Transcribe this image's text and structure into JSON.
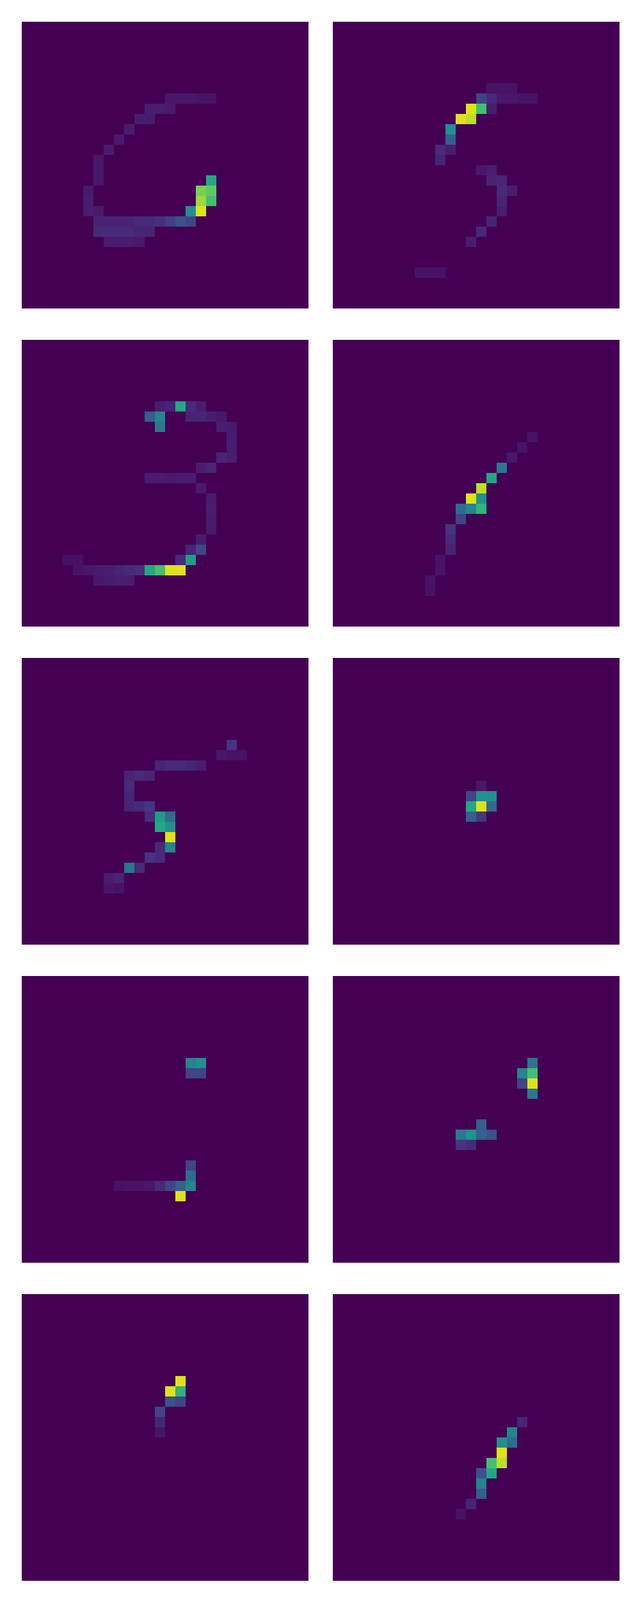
{
  "chart_data": {
    "type": "heatmap",
    "tick_labels": false,
    "color": "viridis",
    "color_range": [
      0,
      1
    ],
    "grid_size": 28,
    "background": 0,
    "panels": [
      {
        "cells": [
          [
            15,
            18,
            0.6
          ],
          [
            16,
            17,
            0.8
          ],
          [
            16,
            18,
            0.75
          ],
          [
            17,
            17,
            0.85
          ],
          [
            17,
            18,
            0.7
          ],
          [
            18,
            16,
            0.5
          ],
          [
            18,
            17,
            0.95
          ],
          [
            19,
            15,
            0.25
          ],
          [
            19,
            16,
            0.2
          ],
          [
            7,
            14,
            0.06
          ],
          [
            7,
            15,
            0.06
          ],
          [
            7,
            16,
            0.06
          ],
          [
            7,
            17,
            0.05
          ],
          [
            7,
            18,
            0.05
          ],
          [
            8,
            12,
            0.08
          ],
          [
            8,
            13,
            0.08
          ],
          [
            8,
            14,
            0.07
          ],
          [
            9,
            11,
            0.08
          ],
          [
            9,
            12,
            0.07
          ],
          [
            10,
            10,
            0.08
          ],
          [
            11,
            9,
            0.07
          ],
          [
            12,
            8,
            0.07
          ],
          [
            13,
            7,
            0.06
          ],
          [
            14,
            7,
            0.06
          ],
          [
            15,
            7,
            0.06
          ],
          [
            16,
            6,
            0.07
          ],
          [
            17,
            6,
            0.08
          ],
          [
            18,
            6,
            0.08
          ],
          [
            18,
            7,
            0.07
          ],
          [
            19,
            7,
            0.1
          ],
          [
            19,
            8,
            0.1
          ],
          [
            19,
            9,
            0.1
          ],
          [
            19,
            10,
            0.1
          ],
          [
            19,
            11,
            0.12
          ],
          [
            19,
            12,
            0.12
          ],
          [
            19,
            13,
            0.14
          ],
          [
            19,
            14,
            0.18
          ],
          [
            20,
            7,
            0.12
          ],
          [
            20,
            8,
            0.12
          ],
          [
            20,
            9,
            0.12
          ],
          [
            20,
            10,
            0.12
          ],
          [
            20,
            11,
            0.1
          ],
          [
            20,
            12,
            0.1
          ],
          [
            21,
            8,
            0.08
          ],
          [
            21,
            9,
            0.08
          ],
          [
            21,
            10,
            0.08
          ],
          [
            21,
            11,
            0.07
          ]
        ]
      },
      {
        "cells": [
          [
            8,
            13,
            0.95
          ],
          [
            8,
            14,
            0.7
          ],
          [
            9,
            12,
            0.95
          ],
          [
            9,
            13,
            0.9
          ],
          [
            10,
            11,
            0.5
          ],
          [
            11,
            11,
            0.3
          ],
          [
            7,
            14,
            0.2
          ],
          [
            7,
            15,
            0.12
          ],
          [
            6,
            15,
            0.05
          ],
          [
            6,
            16,
            0.05
          ],
          [
            6,
            17,
            0.05
          ],
          [
            7,
            16,
            0.06
          ],
          [
            7,
            17,
            0.06
          ],
          [
            7,
            18,
            0.05
          ],
          [
            7,
            19,
            0.05
          ],
          [
            8,
            15,
            0.08
          ],
          [
            12,
            10,
            0.12
          ],
          [
            13,
            10,
            0.1
          ],
          [
            12,
            11,
            0.08
          ],
          [
            14,
            14,
            0.06
          ],
          [
            14,
            15,
            0.08
          ],
          [
            15,
            15,
            0.1
          ],
          [
            15,
            16,
            0.1
          ],
          [
            16,
            16,
            0.12
          ],
          [
            16,
            17,
            0.08
          ],
          [
            17,
            16,
            0.1
          ],
          [
            18,
            16,
            0.08
          ],
          [
            19,
            15,
            0.1
          ],
          [
            20,
            14,
            0.12
          ],
          [
            21,
            13,
            0.08
          ],
          [
            24,
            8,
            0.05
          ],
          [
            24,
            9,
            0.05
          ],
          [
            24,
            10,
            0.05
          ]
        ]
      },
      {
        "cells": [
          [
            6,
            15,
            0.6
          ],
          [
            7,
            13,
            0.45
          ],
          [
            7,
            12,
            0.3
          ],
          [
            8,
            13,
            0.4
          ],
          [
            22,
            14,
            0.95
          ],
          [
            22,
            15,
            0.95
          ],
          [
            22,
            12,
            0.6
          ],
          [
            22,
            13,
            0.7
          ],
          [
            21,
            16,
            0.55
          ],
          [
            20,
            17,
            0.2
          ],
          [
            6,
            13,
            0.08
          ],
          [
            6,
            14,
            0.1
          ],
          [
            6,
            16,
            0.12
          ],
          [
            6,
            17,
            0.08
          ],
          [
            7,
            16,
            0.1
          ],
          [
            7,
            17,
            0.1
          ],
          [
            7,
            18,
            0.08
          ],
          [
            7,
            19,
            0.06
          ],
          [
            8,
            19,
            0.08
          ],
          [
            8,
            20,
            0.07
          ],
          [
            9,
            20,
            0.08
          ],
          [
            10,
            20,
            0.08
          ],
          [
            11,
            19,
            0.1
          ],
          [
            11,
            20,
            0.08
          ],
          [
            12,
            18,
            0.1
          ],
          [
            12,
            17,
            0.08
          ],
          [
            13,
            12,
            0.08
          ],
          [
            13,
            13,
            0.08
          ],
          [
            13,
            14,
            0.07
          ],
          [
            13,
            15,
            0.08
          ],
          [
            13,
            16,
            0.08
          ],
          [
            14,
            17,
            0.07
          ],
          [
            15,
            18,
            0.07
          ],
          [
            16,
            18,
            0.08
          ],
          [
            17,
            18,
            0.07
          ],
          [
            18,
            18,
            0.07
          ],
          [
            19,
            17,
            0.08
          ],
          [
            20,
            16,
            0.1
          ],
          [
            21,
            15,
            0.12
          ],
          [
            22,
            5,
            0.05
          ],
          [
            22,
            6,
            0.06
          ],
          [
            22,
            7,
            0.07
          ],
          [
            22,
            8,
            0.08
          ],
          [
            22,
            9,
            0.1
          ],
          [
            22,
            10,
            0.12
          ],
          [
            22,
            11,
            0.14
          ],
          [
            23,
            7,
            0.06
          ],
          [
            23,
            8,
            0.07
          ],
          [
            23,
            9,
            0.08
          ],
          [
            23,
            10,
            0.08
          ],
          [
            21,
            4,
            0.04
          ],
          [
            21,
            5,
            0.04
          ]
        ]
      },
      {
        "cells": [
          [
            15,
            13,
            0.95
          ],
          [
            14,
            14,
            0.9
          ],
          [
            13,
            15,
            0.6
          ],
          [
            16,
            14,
            0.65
          ],
          [
            12,
            16,
            0.4
          ],
          [
            16,
            12,
            0.35
          ],
          [
            15,
            14,
            0.5
          ],
          [
            16,
            13,
            0.45
          ],
          [
            17,
            12,
            0.2
          ],
          [
            18,
            11,
            0.15
          ],
          [
            19,
            11,
            0.12
          ],
          [
            20,
            11,
            0.1
          ],
          [
            11,
            17,
            0.06
          ],
          [
            10,
            18,
            0.05
          ],
          [
            9,
            19,
            0.05
          ],
          [
            21,
            10,
            0.05
          ],
          [
            22,
            10,
            0.05
          ],
          [
            23,
            9,
            0.05
          ],
          [
            24,
            9,
            0.04
          ]
        ]
      },
      {
        "cells": [
          [
            17,
            14,
            0.95
          ],
          [
            15,
            13,
            0.55
          ],
          [
            16,
            13,
            0.6
          ],
          [
            16,
            14,
            0.5
          ],
          [
            15,
            14,
            0.35
          ],
          [
            18,
            14,
            0.45
          ],
          [
            20,
            10,
            0.4
          ],
          [
            19,
            12,
            0.15
          ],
          [
            20,
            11,
            0.12
          ],
          [
            21,
            9,
            0.1
          ],
          [
            8,
            20,
            0.15
          ],
          [
            10,
            13,
            0.1
          ],
          [
            10,
            14,
            0.12
          ],
          [
            10,
            15,
            0.12
          ],
          [
            10,
            16,
            0.1
          ],
          [
            10,
            17,
            0.08
          ],
          [
            9,
            19,
            0.06
          ],
          [
            9,
            20,
            0.05
          ],
          [
            9,
            21,
            0.05
          ],
          [
            11,
            10,
            0.1
          ],
          [
            11,
            11,
            0.12
          ],
          [
            11,
            12,
            0.1
          ],
          [
            12,
            10,
            0.12
          ],
          [
            13,
            10,
            0.1
          ],
          [
            14,
            10,
            0.1
          ],
          [
            14,
            11,
            0.12
          ],
          [
            14,
            12,
            0.15
          ],
          [
            15,
            12,
            0.12
          ],
          [
            18,
            13,
            0.12
          ],
          [
            19,
            13,
            0.12
          ],
          [
            21,
            8,
            0.08
          ],
          [
            22,
            8,
            0.06
          ],
          [
            22,
            9,
            0.05
          ]
        ]
      },
      {
        "cells": [
          [
            14,
            14,
            0.95
          ],
          [
            13,
            14,
            0.5
          ],
          [
            13,
            15,
            0.5
          ],
          [
            14,
            13,
            0.6
          ],
          [
            15,
            13,
            0.3
          ],
          [
            14,
            15,
            0.35
          ],
          [
            13,
            13,
            0.2
          ],
          [
            15,
            14,
            0.15
          ],
          [
            12,
            14,
            0.06
          ]
        ]
      },
      {
        "cells": [
          [
            8,
            16,
            0.45
          ],
          [
            8,
            17,
            0.5
          ],
          [
            9,
            16,
            0.2
          ],
          [
            9,
            17,
            0.2
          ],
          [
            21,
            15,
            0.95
          ],
          [
            20,
            15,
            0.3
          ],
          [
            20,
            16,
            0.45
          ],
          [
            19,
            16,
            0.35
          ],
          [
            18,
            16,
            0.2
          ],
          [
            20,
            14,
            0.2
          ],
          [
            20,
            13,
            0.12
          ],
          [
            20,
            12,
            0.06
          ],
          [
            20,
            11,
            0.05
          ],
          [
            20,
            10,
            0.05
          ],
          [
            20,
            9,
            0.04
          ]
        ]
      },
      {
        "cells": [
          [
            10,
            19,
            0.95
          ],
          [
            9,
            19,
            0.7
          ],
          [
            9,
            18,
            0.45
          ],
          [
            8,
            19,
            0.4
          ],
          [
            11,
            19,
            0.4
          ],
          [
            10,
            18,
            0.2
          ],
          [
            15,
            13,
            0.5
          ],
          [
            15,
            12,
            0.4
          ],
          [
            15,
            14,
            0.3
          ],
          [
            15,
            15,
            0.25
          ],
          [
            14,
            14,
            0.3
          ],
          [
            16,
            12,
            0.15
          ],
          [
            16,
            13,
            0.12
          ]
        ]
      },
      {
        "cells": [
          [
            9,
            14,
            0.95
          ],
          [
            8,
            15,
            0.95
          ],
          [
            9,
            15,
            0.65
          ],
          [
            10,
            14,
            0.25
          ],
          [
            10,
            15,
            0.2
          ],
          [
            11,
            13,
            0.2
          ],
          [
            12,
            13,
            0.1
          ],
          [
            13,
            13,
            0.06
          ]
        ]
      },
      {
        "cells": [
          [
            15,
            16,
            0.95
          ],
          [
            16,
            16,
            0.9
          ],
          [
            16,
            15,
            0.7
          ],
          [
            17,
            15,
            0.6
          ],
          [
            13,
            17,
            0.45
          ],
          [
            14,
            17,
            0.35
          ],
          [
            14,
            16,
            0.5
          ],
          [
            18,
            14,
            0.45
          ],
          [
            19,
            14,
            0.3
          ],
          [
            17,
            14,
            0.25
          ],
          [
            20,
            13,
            0.1
          ],
          [
            12,
            18,
            0.1
          ],
          [
            21,
            12,
            0.05
          ]
        ]
      }
    ]
  }
}
